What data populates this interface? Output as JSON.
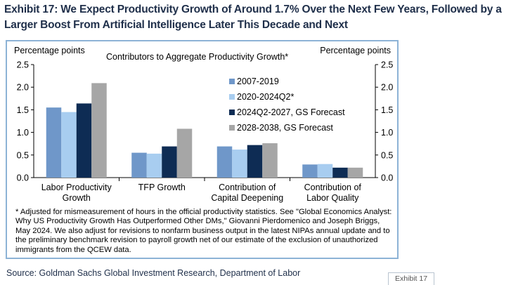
{
  "headline": "Exhibit 17: We Expect Productivity Growth of Around 1.7% Over the Next Few Years, Followed by a Larger Boost From Artificial Intelligence Later This Decade and Next",
  "source": "Source: Goldman Sachs Global Investment Research, Department of Labor",
  "exhibit_tag": "Exhibit 17",
  "footnote": "* Adjusted for mismeasurement of hours in the official productivity statistics. See \"Global Economics Analyst: Why US Productivity Growth Has Outperformed Other DMs,\" Giovanni Pierdomenico and Joseph Briggs, May 2024. We also adjust for revisions to nonfarm business output in the latest NIPAs annual update and to the preliminary benchmark revision to payroll growth net of our estimate of the exclusion of unauthorized immigrants from the QCEW data.",
  "chart_data": {
    "type": "bar",
    "title": "Contributors to Aggregate Productivity Growth*",
    "ylabel_left": "Percentage points",
    "ylabel_right": "Percentage points",
    "ylim": [
      0,
      2.5
    ],
    "yticks": [
      "0.0",
      "0.5",
      "1.0",
      "1.5",
      "2.0",
      "2.5"
    ],
    "grid": false,
    "legend_position": "top-right",
    "categories": [
      [
        "Labor Productivity",
        "Growth"
      ],
      [
        "TFP Growth"
      ],
      [
        "Contribution of",
        "Capital Deepening"
      ],
      [
        "Contribution of",
        "Labor Quality"
      ]
    ],
    "series": [
      {
        "name": "2007-2019",
        "color": "#6f97c9",
        "values": [
          1.55,
          0.55,
          0.69,
          0.29
        ]
      },
      {
        "name": "2020-2024Q2*",
        "color": "#a8cdf0",
        "values": [
          1.45,
          0.53,
          0.62,
          0.3
        ]
      },
      {
        "name": "2024Q2-2027, GS Forecast",
        "color": "#0e2c54",
        "values": [
          1.64,
          0.69,
          0.72,
          0.22
        ]
      },
      {
        "name": "2028-2038, GS Forecast",
        "color": "#a6a6a6",
        "values": [
          2.09,
          1.08,
          0.76,
          0.22
        ]
      }
    ]
  }
}
